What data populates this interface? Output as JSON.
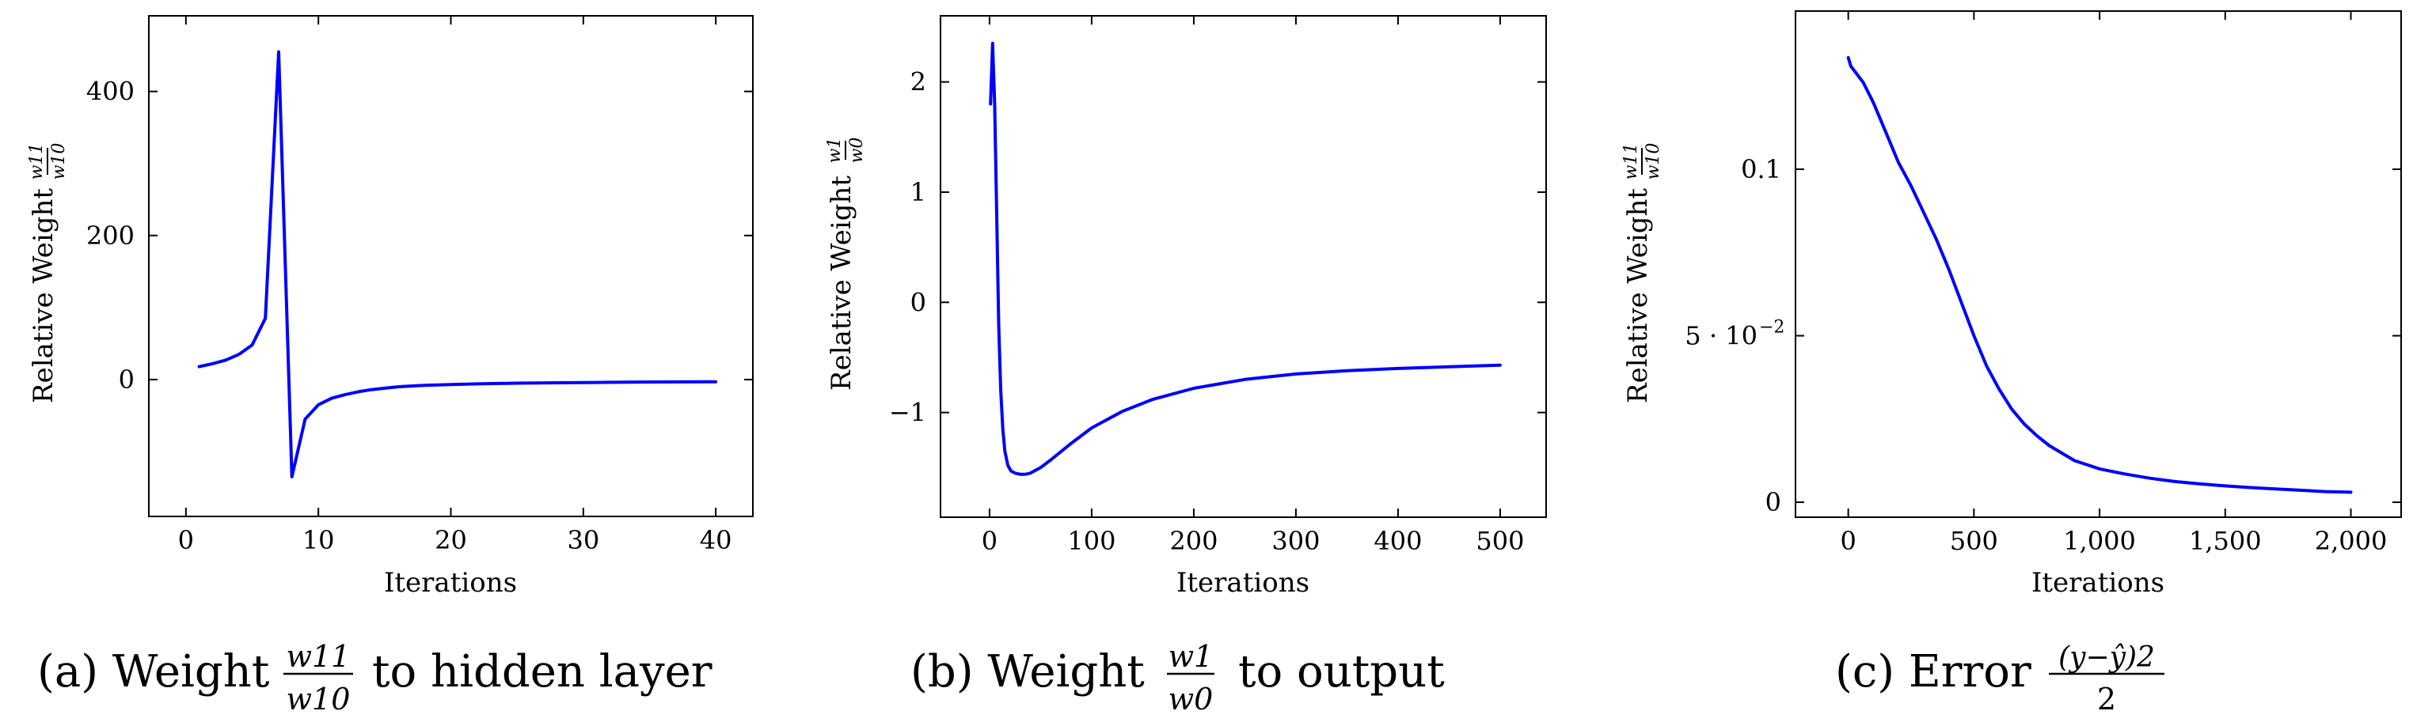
{
  "chart_data": [
    {
      "type": "line",
      "xlabel": "Iterations",
      "ylabel_text": "Relative Weight",
      "ylabel_frac": {
        "num": "w11",
        "den": "w10"
      },
      "xlim": [
        -2.8,
        42.8
      ],
      "ylim": [
        -190,
        505
      ],
      "xticks": [
        0,
        10,
        20,
        30,
        40
      ],
      "yticks": [
        0,
        200,
        400
      ],
      "tick_labels_x": [
        "0",
        "10",
        "20",
        "30",
        "40"
      ],
      "tick_labels_y": [
        "0",
        "200",
        "400"
      ],
      "line_color": "#0000ff",
      "caption": {
        "prefix": "(a) Weight",
        "frac": {
          "num": "w11",
          "den": "w10"
        },
        "suffix": "to hidden layer"
      },
      "series": [
        {
          "x": [
            1,
            2,
            3,
            4,
            5,
            6,
            7,
            8,
            9,
            10,
            11,
            12,
            13,
            14,
            15,
            16,
            18,
            20,
            22,
            25,
            28,
            31,
            34,
            37,
            40
          ],
          "y": [
            18,
            22,
            27,
            35,
            48,
            85,
            455,
            -135,
            -55,
            -35,
            -26,
            -21,
            -17,
            -14,
            -12,
            -10,
            -8,
            -7,
            -6,
            -5,
            -4.5,
            -4,
            -3.5,
            -3.2,
            -3
          ]
        }
      ]
    },
    {
      "type": "line",
      "xlabel": "Iterations",
      "ylabel_text": "Relative Weight",
      "ylabel_frac": {
        "num": "w1",
        "den": "w0"
      },
      "xlim": [
        -48,
        545
      ],
      "ylim": [
        -1.95,
        2.6
      ],
      "xticks": [
        0,
        100,
        200,
        300,
        400,
        500
      ],
      "yticks": [
        -1,
        0,
        1,
        2
      ],
      "tick_labels_x": [
        "0",
        "100",
        "200",
        "300",
        "400",
        "500"
      ],
      "tick_labels_y": [
        "−1",
        "0",
        "1",
        "2"
      ],
      "line_color": "#0000ff",
      "caption": {
        "prefix": "(b) Weight",
        "frac": {
          "num": "w1",
          "den": "w0"
        },
        "suffix": "to output"
      },
      "series": [
        {
          "x": [
            1,
            3,
            5,
            7,
            9,
            11,
            13,
            15,
            18,
            21,
            25,
            30,
            35,
            40,
            50,
            60,
            80,
            100,
            130,
            160,
            200,
            250,
            300,
            350,
            400,
            450,
            500
          ],
          "y": [
            1.8,
            2.35,
            1.8,
            0.8,
            -0.2,
            -0.8,
            -1.15,
            -1.35,
            -1.48,
            -1.53,
            -1.55,
            -1.56,
            -1.56,
            -1.55,
            -1.5,
            -1.43,
            -1.28,
            -1.14,
            -0.99,
            -0.88,
            -0.78,
            -0.7,
            -0.65,
            -0.62,
            -0.6,
            -0.585,
            -0.57
          ]
        }
      ]
    },
    {
      "type": "line",
      "xlabel": "Iterations",
      "ylabel_text": "Relative Weight",
      "ylabel_frac": {
        "num": "w11",
        "den": "w10"
      },
      "xlim": [
        -210,
        2200
      ],
      "ylim": [
        -0.0045,
        0.1475
      ],
      "xticks": [
        0,
        500,
        1000,
        1500,
        2000
      ],
      "yticks": [
        0,
        0.05,
        0.1
      ],
      "tick_labels_x": [
        "0",
        "500",
        "1,000",
        "1,500",
        "2,000"
      ],
      "tick_labels_y": [
        "0",
        "5 · 10",
        "0.1"
      ],
      "ytick_exponent": "−2",
      "line_color": "#0000ff",
      "caption": {
        "prefix": "(c) Error",
        "frac": {
          "num": "(y−ŷ)2",
          "den": "2"
        },
        "suffix": ""
      },
      "series": [
        {
          "x": [
            0,
            10,
            30,
            60,
            100,
            150,
            200,
            250,
            300,
            350,
            400,
            450,
            500,
            550,
            600,
            650,
            700,
            750,
            800,
            900,
            1000,
            1100,
            1200,
            1300,
            1400,
            1500,
            1600,
            1700,
            1800,
            1900,
            2000
          ],
          "y": [
            0.1335,
            0.131,
            0.129,
            0.126,
            0.12,
            0.111,
            0.102,
            0.095,
            0.087,
            0.079,
            0.07,
            0.06,
            0.05,
            0.041,
            0.034,
            0.028,
            0.0235,
            0.02,
            0.017,
            0.0125,
            0.01,
            0.0085,
            0.0072,
            0.0062,
            0.0055,
            0.0049,
            0.0044,
            0.004,
            0.0036,
            0.0032,
            0.003
          ]
        }
      ]
    }
  ]
}
